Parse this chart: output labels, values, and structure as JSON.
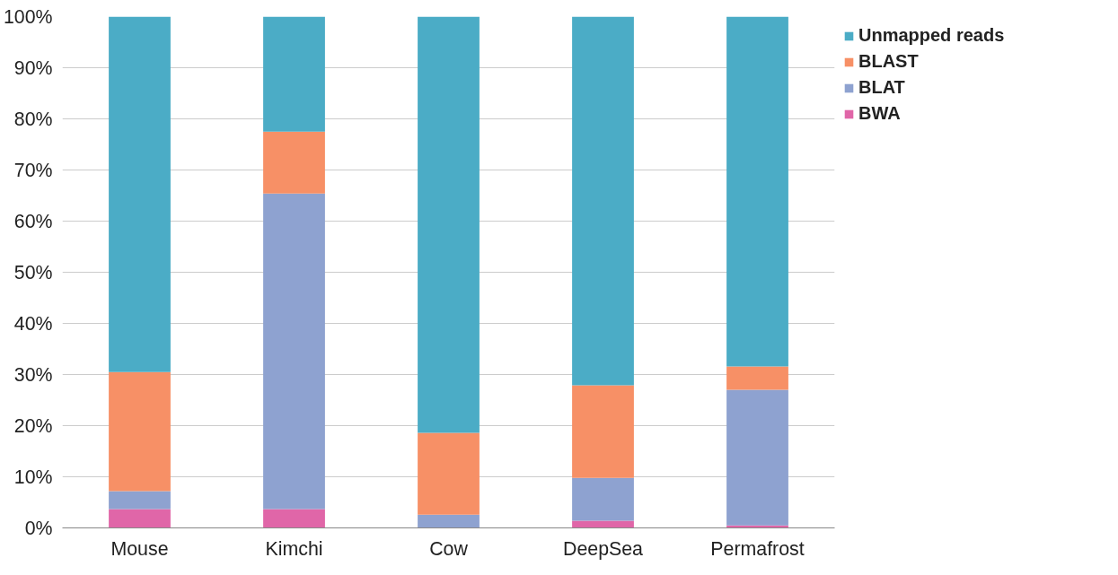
{
  "chart_data": {
    "type": "bar",
    "stacked": true,
    "categories": [
      "Mouse",
      "Kimchi",
      "Cow",
      "DeepSea",
      "Permafrost"
    ],
    "series": [
      {
        "name": "BWA",
        "color": "#e066a8",
        "values": [
          3.7,
          3.7,
          0,
          1.4,
          0.5
        ]
      },
      {
        "name": "BLAT",
        "color": "#8ea2d0",
        "values": [
          3.5,
          61.7,
          2.6,
          8.4,
          26.5
        ]
      },
      {
        "name": "BLAST",
        "color": "#f79066",
        "values": [
          23.3,
          12.1,
          16.0,
          18.1,
          4.6
        ]
      },
      {
        "name": "Unmapped reads",
        "color": "#4bacc6",
        "values": [
          69.5,
          22.5,
          81.4,
          72.1,
          68.4
        ]
      }
    ],
    "ylim": [
      0,
      100
    ],
    "yticks": [
      {
        "value": 0,
        "label": "0%"
      },
      {
        "value": 10,
        "label": "10%"
      },
      {
        "value": 20,
        "label": "20%"
      },
      {
        "value": 30,
        "label": "30%"
      },
      {
        "value": 40,
        "label": "40%"
      },
      {
        "value": 50,
        "label": "50%"
      },
      {
        "value": 60,
        "label": "60%"
      },
      {
        "value": 70,
        "label": "70%"
      },
      {
        "value": 80,
        "label": "80%"
      },
      {
        "value": 90,
        "label": "90%"
      },
      {
        "value": 100,
        "label": "100%"
      }
    ],
    "grid": "y",
    "legend": "right"
  }
}
